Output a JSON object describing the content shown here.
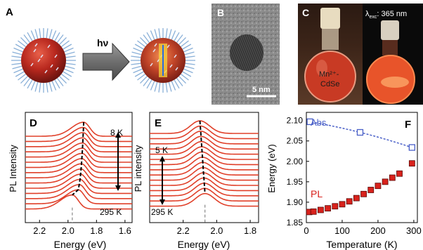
{
  "panels": {
    "a": {
      "letter": "A",
      "arrow_label": "hν"
    },
    "b": {
      "letter": "B",
      "scale_bar": "5 nm"
    },
    "c": {
      "letter": "C",
      "vial_text_line1": "Mn²⁺-",
      "vial_text_line2": "CdSe",
      "excitation_symbol": "λ",
      "excitation_subscript": "exc",
      "excitation_value": ": 365 nm"
    },
    "d": {
      "letter": "D",
      "ylabel": "PL Intensity",
      "xlabel": "Energy (eV)",
      "xticks": [
        "2.2",
        "2.0",
        "1.8",
        "1.6"
      ],
      "temp_low": "8 K",
      "temp_high": "295 K"
    },
    "e": {
      "letter": "E",
      "ylabel": "PL intensity",
      "xlabel": "Energy (eV)",
      "xticks": [
        "2.2",
        "2.0",
        "1.8"
      ],
      "temp_low": "5 K",
      "temp_high": "295 K"
    },
    "f": {
      "letter": "F",
      "ylabel": "Energy (eV)",
      "xlabel": "Temperature (K)",
      "yticks": [
        "1.85",
        "1.90",
        "1.95",
        "2.00",
        "2.05",
        "2.10"
      ],
      "xticks": [
        "0",
        "100",
        "200",
        "300"
      ],
      "legend_abs": "Abs.",
      "legend_pl": "PL"
    }
  },
  "colors": {
    "curve": "#e0402a",
    "abs": "#4a60c8",
    "pl_fill": "#d8221c"
  },
  "chart_data": [
    {
      "type": "line",
      "panel": "D",
      "title": "",
      "xlabel": "Energy (eV)",
      "ylabel": "PL Intensity",
      "xlim": [
        2.3,
        1.55
      ],
      "series_count": 15,
      "temperature_range_K": [
        8,
        295
      ],
      "peak_energy_eV_range": [
        1.89,
        1.97
      ]
    },
    {
      "type": "line",
      "panel": "E",
      "title": "",
      "xlabel": "Energy (eV)",
      "ylabel": "PL intensity",
      "xlim": [
        2.4,
        1.75
      ],
      "series_count": 15,
      "temperature_range_K": [
        5,
        295
      ],
      "peak_energy_eV_range": [
        2.07,
        2.1
      ]
    },
    {
      "type": "scatter",
      "panel": "F",
      "title": "",
      "xlabel": "Temperature (K)",
      "ylabel": "Energy (eV)",
      "xlim": [
        0,
        310
      ],
      "ylim": [
        1.85,
        2.12
      ],
      "series": [
        {
          "name": "Abs.",
          "x": [
            10,
            150,
            295
          ],
          "y": [
            2.097,
            2.071,
            2.034
          ]
        },
        {
          "name": "PL",
          "x": [
            8,
            20,
            40,
            60,
            80,
            100,
            120,
            140,
            160,
            180,
            200,
            220,
            240,
            260,
            295
          ],
          "y": [
            1.876,
            1.877,
            1.881,
            1.885,
            1.89,
            1.895,
            1.902,
            1.91,
            1.92,
            1.93,
            1.94,
            1.95,
            1.96,
            1.97,
            1.995
          ]
        }
      ]
    }
  ]
}
